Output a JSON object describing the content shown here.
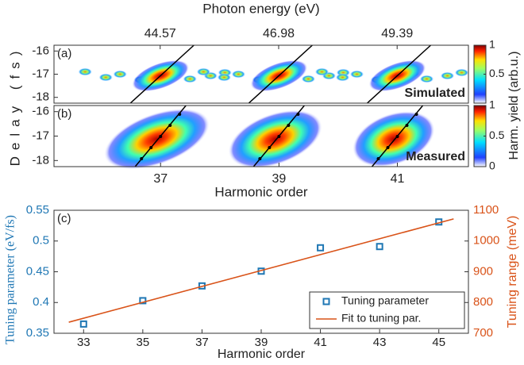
{
  "chart_data": [
    {
      "type": "heatmap",
      "label": "(a)",
      "annotation": "Simulated",
      "x2label": "Photon energy (eV)",
      "x2lim": [
        42.41,
        50.84
      ],
      "x2ticks": [
        44.57,
        46.98,
        49.39
      ],
      "xlim": [
        35.2,
        42.2
      ],
      "ylabel": "Delay (fs)",
      "ylim": [
        -18.25,
        -15.75
      ],
      "yticks": [
        -16,
        -17,
        -18
      ],
      "colorbar_ticks": [
        0.5,
        1
      ],
      "colorbar_label": "Harm. yield (arb.u.)"
    },
    {
      "type": "heatmap",
      "label": "(b)",
      "annotation": "Measured",
      "xlabel": "Harmonic order",
      "xlim": [
        35.2,
        42.2
      ],
      "xticks": [
        37,
        39,
        41
      ],
      "ylim": [
        -18.25,
        -15.75
      ],
      "yticks": [
        -16,
        -17,
        -18
      ],
      "colorbar_ticks": [
        0,
        0.5,
        1
      ]
    },
    {
      "type": "scatter",
      "label": "(c)",
      "xlabel": "Harmonic order",
      "ylabel": "Tuning parameter (eV/fs)",
      "y2label": "Tuning range (meV)",
      "xlim": [
        32,
        46
      ],
      "xticks": [
        33,
        35,
        37,
        39,
        41,
        43,
        45
      ],
      "ylim": [
        0.35,
        0.55
      ],
      "yticks": [
        0.35,
        0.4,
        0.45,
        0.5,
        0.55
      ],
      "y2lim": [
        700,
        1100
      ],
      "y2ticks": [
        700,
        800,
        900,
        1000,
        1100
      ],
      "legend": "lower right",
      "series": [
        {
          "name": "Tuning parameter",
          "color": "#1f77b4",
          "marker": "square",
          "x": [
            33,
            35,
            37,
            39,
            41,
            43,
            45
          ],
          "values": [
            0.365,
            0.403,
            0.427,
            0.451,
            0.489,
            0.491,
            0.531
          ]
        },
        {
          "name": "Fit to tuning par.",
          "color": "#d95319",
          "marker": "line",
          "x": [
            32.5,
            45.5
          ],
          "values": [
            0.368,
            0.536
          ]
        }
      ]
    }
  ]
}
